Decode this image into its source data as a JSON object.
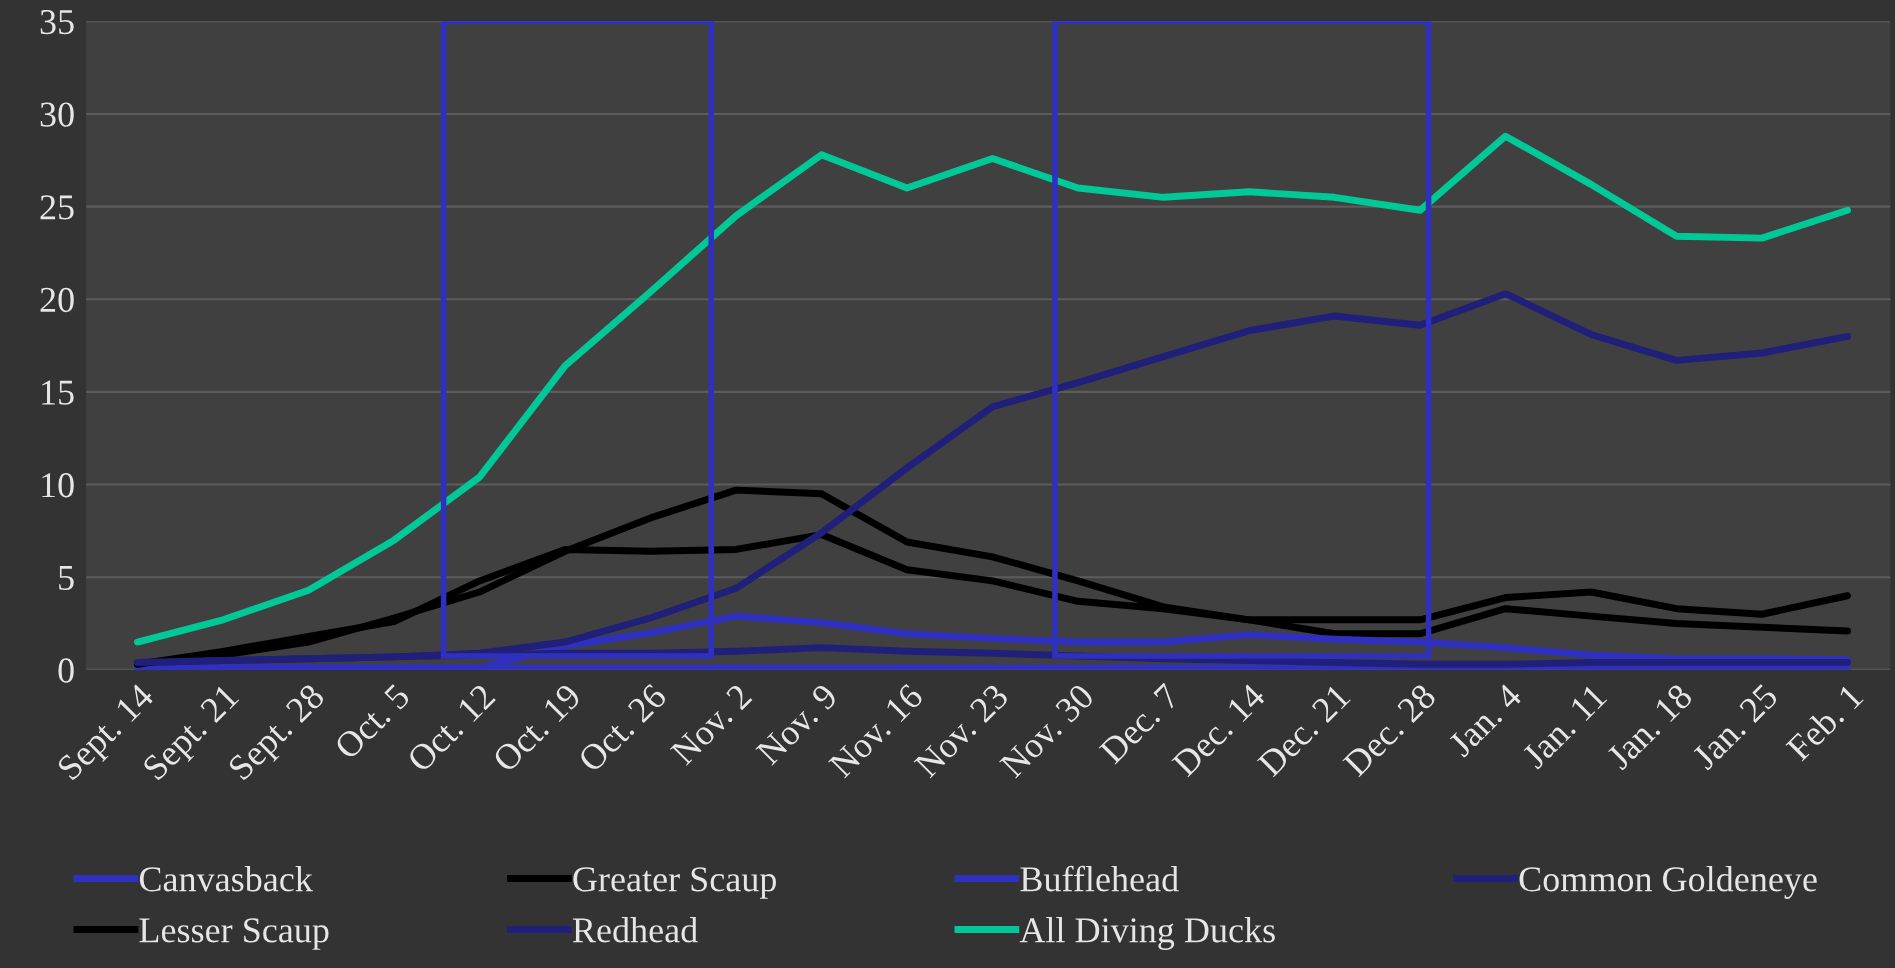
{
  "chart_data": {
    "type": "line",
    "categories": [
      "Sept. 14",
      "Sept. 21",
      "Sept. 28",
      "Oct. 5",
      "Oct. 12",
      "Oct. 19",
      "Oct. 26",
      "Nov. 2",
      "Nov. 9",
      "Nov. 16",
      "Nov. 23",
      "Nov. 30",
      "Dec. 7",
      "Dec. 14",
      "Dec. 21",
      "Dec. 28",
      "Jan. 4",
      "Jan. 11",
      "Jan. 18",
      "Jan. 25",
      "Feb. 1"
    ],
    "series": [
      {
        "name": "Canvasback",
        "color": "#3030c0",
        "values": [
          0.1,
          0.1,
          0.1,
          0.1,
          0.1,
          0.1,
          0.1,
          0.1,
          0.1,
          0.1,
          0.1,
          0.1,
          0.1,
          0.1,
          0.1,
          0.1,
          0.1,
          0.1,
          0.1,
          0.1,
          0.1
        ]
      },
      {
        "name": "Greater Scaup",
        "color": "#000000",
        "values": [
          0.3,
          0.8,
          1.5,
          2.8,
          4.2,
          6.4,
          8.2,
          9.7,
          9.5,
          6.9,
          6.1,
          4.8,
          3.4,
          2.7,
          1.95,
          1.95,
          3.3,
          2.9,
          2.5,
          2.3,
          2.1
        ]
      },
      {
        "name": "Bufflehead",
        "color": "#3030c0",
        "values": [
          0.1,
          0.1,
          0.1,
          0.1,
          0.1,
          1.3,
          2.0,
          2.9,
          2.55,
          1.95,
          1.7,
          1.5,
          1.5,
          1.9,
          1.65,
          1.5,
          1.2,
          0.8,
          0.6,
          0.6,
          0.55
        ]
      },
      {
        "name": "Common Goldeneye",
        "color": "#20207a",
        "values": [
          0.4,
          0.5,
          0.6,
          0.7,
          0.8,
          0.9,
          0.9,
          1.0,
          1.2,
          1.0,
          0.9,
          0.75,
          0.6,
          0.5,
          0.4,
          0.3,
          0.3,
          0.4,
          0.4,
          0.4,
          0.4
        ]
      },
      {
        "name": "Lesser Scaup",
        "color": "#000000",
        "values": [
          0.3,
          1.0,
          1.8,
          2.6,
          4.8,
          6.5,
          6.4,
          6.5,
          7.3,
          5.4,
          4.8,
          3.7,
          3.3,
          2.7,
          2.7,
          2.7,
          3.9,
          4.2,
          3.3,
          3.0,
          4.0
        ]
      },
      {
        "name": "Redhead",
        "color": "#20207a",
        "values": [
          0.4,
          0.5,
          0.6,
          0.7,
          0.9,
          1.5,
          2.8,
          4.4,
          7.4,
          10.9,
          14.2,
          15.5,
          16.9,
          18.3,
          19.1,
          18.6,
          20.3,
          18.1,
          16.7,
          17.1,
          18.0
        ]
      },
      {
        "name": "All Diving Ducks",
        "color": "#00c896",
        "values": [
          1.5,
          2.7,
          4.3,
          7.0,
          10.4,
          16.4,
          20.4,
          24.5,
          27.8,
          26.0,
          27.6,
          26.0,
          25.5,
          25.8,
          25.5,
          24.8,
          28.8,
          26.2,
          23.4,
          23.3,
          24.8
        ]
      }
    ],
    "ylim": [
      0,
      35
    ],
    "yticks": [
      0,
      5,
      10,
      15,
      20,
      25,
      30,
      35
    ],
    "grid": "y",
    "legend": "bottom",
    "marker": "none",
    "line_style": "solid"
  }
}
